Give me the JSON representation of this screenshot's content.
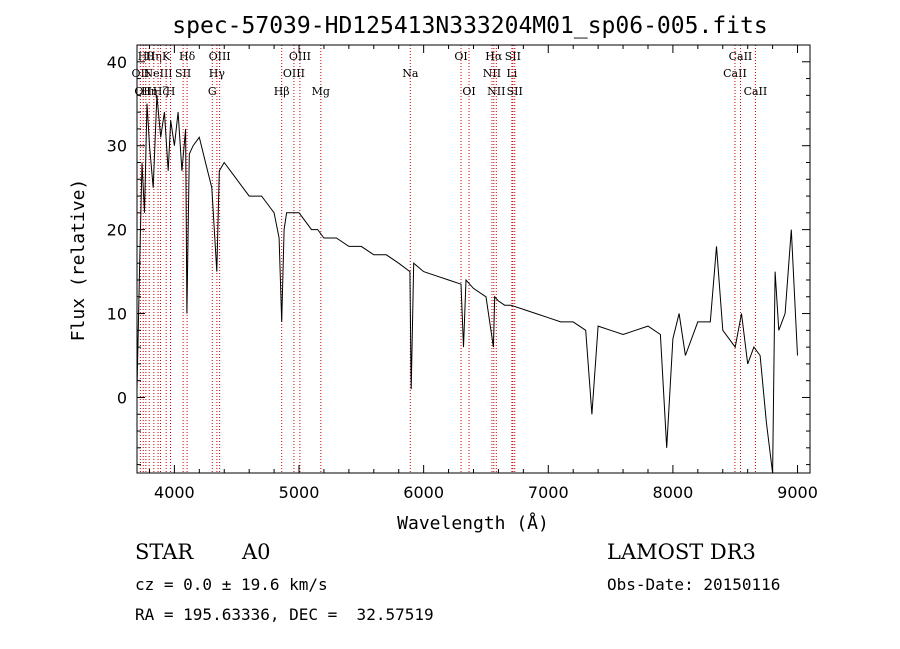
{
  "chart_data": {
    "type": "line",
    "title": "spec-57039-HD125413N333204M01_sp06-005.fits",
    "xlabel": "Wavelength (Å)",
    "ylabel": "Flux (relative)",
    "xlim": [
      3700,
      9100
    ],
    "ylim": [
      -9,
      42
    ],
    "xticks": [
      4000,
      5000,
      6000,
      7000,
      8000,
      9000
    ],
    "yticks": [
      0,
      10,
      20,
      30,
      40
    ],
    "series": [
      {
        "name": "flux",
        "x": [
          3700,
          3720,
          3740,
          3760,
          3780,
          3800,
          3830,
          3860,
          3890,
          3920,
          3950,
          3970,
          4000,
          4030,
          4060,
          4090,
          4100,
          4120,
          4150,
          4200,
          4250,
          4300,
          4340,
          4360,
          4400,
          4450,
          4500,
          4550,
          4600,
          4650,
          4700,
          4750,
          4800,
          4840,
          4861,
          4880,
          4900,
          4950,
          5000,
          5050,
          5100,
          5150,
          5200,
          5300,
          5400,
          5500,
          5600,
          5700,
          5800,
          5890,
          5900,
          5920,
          6000,
          6100,
          6200,
          6300,
          6320,
          6340,
          6400,
          6500,
          6560,
          6570,
          6600,
          6650,
          6700,
          6800,
          6900,
          7000,
          7100,
          7200,
          7300,
          7350,
          7400,
          7500,
          7600,
          7700,
          7800,
          7900,
          7950,
          8000,
          8050,
          8100,
          8200,
          8300,
          8350,
          8400,
          8450,
          8500,
          8550,
          8600,
          8650,
          8700,
          8750,
          8800,
          8820,
          8850,
          8900,
          8950,
          9000
        ],
        "values": [
          1,
          15,
          28,
          22,
          35,
          30,
          25,
          36,
          31,
          34,
          27,
          33,
          30,
          34,
          27,
          32,
          10,
          29,
          30,
          31,
          28,
          25,
          15,
          27,
          28,
          27,
          26,
          25,
          24,
          24,
          24,
          23,
          22,
          19,
          9,
          20,
          22,
          22,
          22,
          21,
          20,
          20,
          19,
          19,
          18,
          18,
          17,
          17,
          16,
          15,
          1,
          16,
          15,
          14.5,
          14,
          13.5,
          6,
          14,
          13,
          12,
          6,
          12,
          11.5,
          11,
          11,
          10.5,
          10,
          9.5,
          9,
          9,
          8,
          -2,
          8.5,
          8,
          7.5,
          8,
          8.5,
          7.5,
          -6,
          7,
          10,
          5,
          9,
          9,
          18,
          8,
          7,
          6,
          10,
          4,
          6,
          5,
          -3,
          -9,
          15,
          8,
          10,
          20,
          5
        ]
      }
    ],
    "lines": [
      {
        "wave": 3727,
        "label": "OII",
        "row": 1
      },
      {
        "wave": 3750,
        "label": "OII",
        "row": 2
      },
      {
        "wave": 3771,
        "label": "Hθ",
        "row": 0
      },
      {
        "wave": 3798,
        "label": "Hη",
        "row": 2
      },
      {
        "wave": 3835,
        "label": "Hη",
        "row": 0
      },
      {
        "wave": 3869,
        "label": "NeIII",
        "row": 1
      },
      {
        "wave": 3889,
        "label": "Hζ",
        "row": 2
      },
      {
        "wave": 3934,
        "label": "K",
        "row": 0
      },
      {
        "wave": 3969,
        "label": "H",
        "row": 2
      },
      {
        "wave": 4070,
        "label": "SII",
        "row": 1
      },
      {
        "wave": 4102,
        "label": "Hδ",
        "row": 0
      },
      {
        "wave": 4304,
        "label": "G",
        "row": 2
      },
      {
        "wave": 4341,
        "label": "Hγ",
        "row": 1
      },
      {
        "wave": 4363,
        "label": "OIII",
        "row": 0
      },
      {
        "wave": 4861,
        "label": "Hβ",
        "row": 2
      },
      {
        "wave": 4959,
        "label": "OIII",
        "row": 1
      },
      {
        "wave": 5007,
        "label": "OIII",
        "row": 0
      },
      {
        "wave": 5175,
        "label": "Mg",
        "row": 2
      },
      {
        "wave": 5893,
        "label": "Na",
        "row": 1
      },
      {
        "wave": 6300,
        "label": "OI",
        "row": 0
      },
      {
        "wave": 6364,
        "label": "OI",
        "row": 2
      },
      {
        "wave": 6548,
        "label": "NII",
        "row": 1
      },
      {
        "wave": 6563,
        "label": "Hα",
        "row": 0
      },
      {
        "wave": 6583,
        "label": "NII",
        "row": 2
      },
      {
        "wave": 6708,
        "label": "Li",
        "row": 1
      },
      {
        "wave": 6716,
        "label": "SII",
        "row": 0
      },
      {
        "wave": 6731,
        "label": "SII",
        "row": 2
      },
      {
        "wave": 8498,
        "label": "CaII",
        "row": 1
      },
      {
        "wave": 8542,
        "label": "CaII",
        "row": 0
      },
      {
        "wave": 8662,
        "label": "CaII",
        "row": 2
      }
    ]
  },
  "info": {
    "class": "STAR",
    "subclass": "A0",
    "survey": "LAMOST DR3",
    "redshift": "cz = 0.0 ± 19.6 km/s",
    "obs_date": "Obs-Date: 20150116",
    "coords": "RA = 195.63336, DEC =  32.57519"
  }
}
